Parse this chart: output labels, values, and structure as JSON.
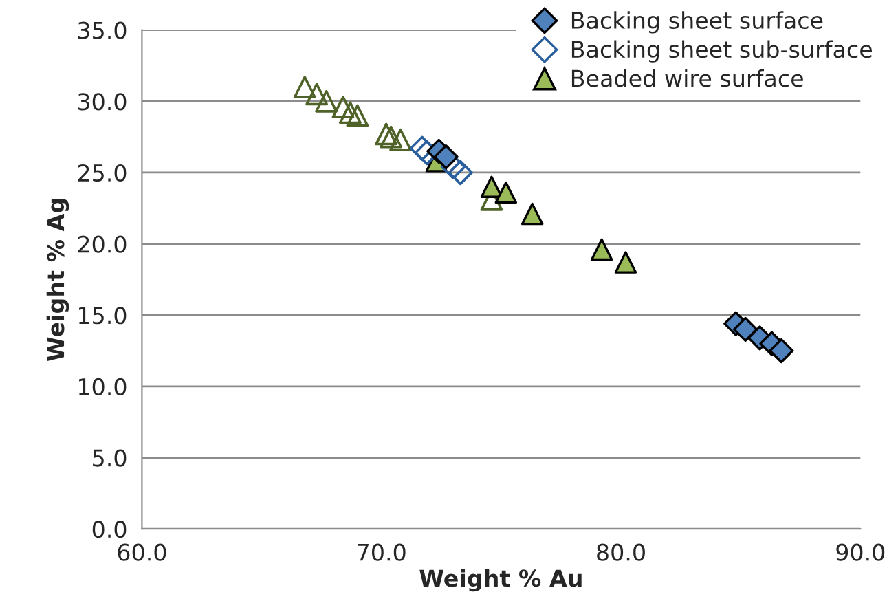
{
  "chart_data": {
    "type": "scatter",
    "xlabel": "Weight % Au",
    "ylabel": "Weight % Ag",
    "xlim": [
      60,
      90
    ],
    "xticks": [
      {
        "value": 60,
        "label": "60.0"
      },
      {
        "value": 70,
        "label": "70.0"
      },
      {
        "value": 80,
        "label": "80.0"
      },
      {
        "value": 90,
        "label": "90.0"
      }
    ],
    "ylim": [
      0,
      35
    ],
    "yticks": [
      {
        "value": 0,
        "label": "0.0"
      },
      {
        "value": 5,
        "label": "5.0"
      },
      {
        "value": 10,
        "label": "10.0"
      },
      {
        "value": 15,
        "label": "15.0"
      },
      {
        "value": 20,
        "label": "20.0"
      },
      {
        "value": 25,
        "label": "25.0"
      },
      {
        "value": 30,
        "label": "30.0"
      },
      {
        "value": 35,
        "label": "35.0"
      }
    ],
    "grid": "y",
    "legend": "top right",
    "series": [
      {
        "name": "Backing sheet surface",
        "color": "#4f81bd",
        "marker": "diamond",
        "x": [
          84.8,
          85.2,
          85.8,
          86.3,
          86.7,
          72.4,
          72.7
        ],
        "values": [
          14.4,
          14.0,
          13.4,
          13.0,
          12.5,
          26.5,
          26.1
        ]
      },
      {
        "name": "Backing sheet sub-surface",
        "color": "#2a5f9e",
        "marker": "diamond",
        "x": [
          71.7,
          71.9,
          73.0,
          73.3
        ],
        "values": [
          26.7,
          26.4,
          25.4,
          25.0
        ]
      },
      {
        "name": "Beaded wire surface",
        "color": "#9bbb59",
        "marker": "triangle",
        "x": [
          72.3,
          74.6,
          75.2,
          76.3,
          79.2,
          80.2
        ],
        "values": [
          25.8,
          24.0,
          23.6,
          22.1,
          19.6,
          18.7
        ]
      },
      {
        "color": "#4f6228",
        "marker": "triangle",
        "x": [
          66.8,
          67.3,
          67.7,
          68.4,
          68.7,
          69.0,
          70.2,
          70.4,
          70.8,
          72.3,
          74.6
        ],
        "values": [
          31.0,
          30.5,
          30.0,
          29.6,
          29.2,
          29.0,
          27.7,
          27.5,
          27.3,
          null,
          23.1
        ]
      }
    ]
  }
}
